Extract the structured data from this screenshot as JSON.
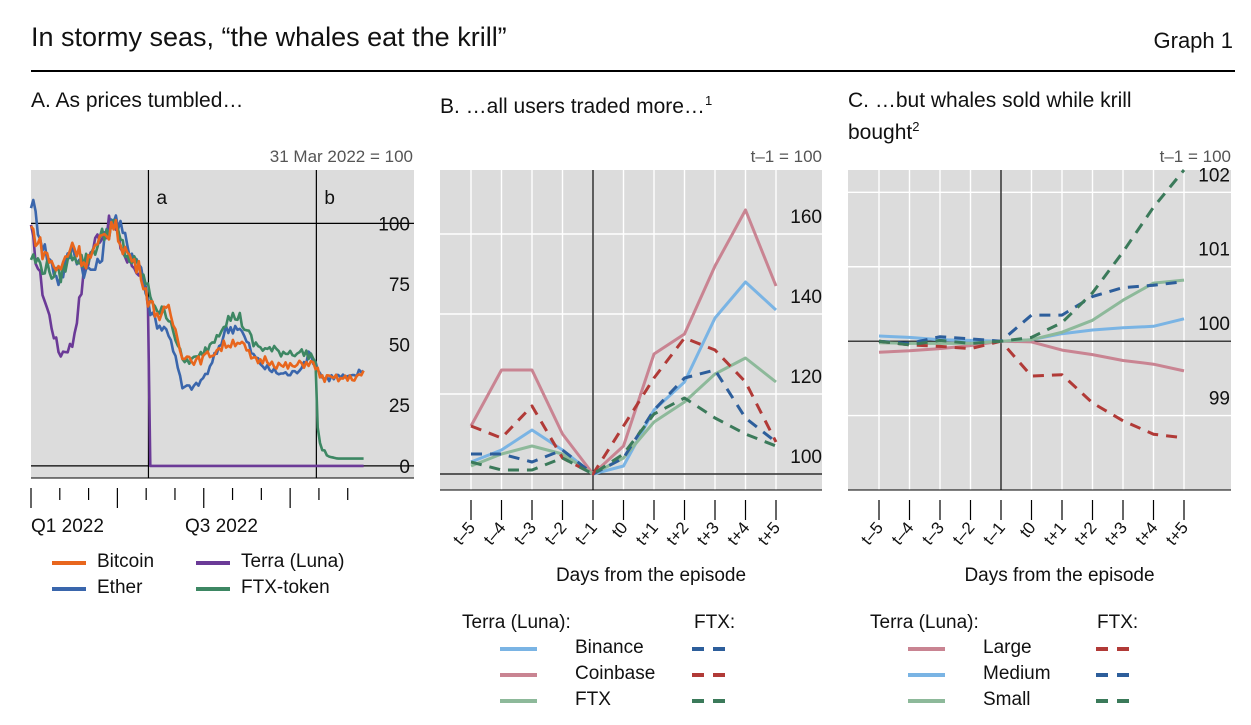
{
  "header": {
    "title": "In stormy seas, “the whales eat the krill”",
    "graph_label": "Graph 1"
  },
  "colors": {
    "bitcoin": "#E8661D",
    "ether": "#3A66AC",
    "terra": "#6B3A97",
    "ftx_token": "#3D8763",
    "binance": "#7AB4E4",
    "coinbase": "#C98492",
    "ftx": "#8DB99A",
    "large": "#C98492",
    "medium": "#7AB4E4",
    "small": "#8DB99A",
    "ftx_red": "#B13A37",
    "ftx_blue": "#2D5E9B",
    "ftx_green": "#3B7A5A",
    "panel_bg": "#DCDCDC"
  },
  "panels": {
    "a": {
      "title": "A. As prices tumbled…",
      "note": "31 Mar 2022 = 100",
      "event_labels": [
        "a",
        "b"
      ],
      "x_tick_labels": [
        "Q1 2022",
        "Q3 2022"
      ],
      "legend": [
        "Bitcoin",
        "Terra (Luna)",
        "Ether",
        "FTX-token"
      ]
    },
    "b": {
      "title": "B. …all users traded more…",
      "title_sup": "1",
      "note": "t–1 = 100",
      "xlabel": "Days from the episode",
      "legend_head_left": "Terra (Luna):",
      "legend_head_right": "FTX:",
      "legend": [
        "Binance",
        "Coinbase",
        "FTX"
      ]
    },
    "c": {
      "title_line1": "C. …but whales sold while krill",
      "title_line2": "bought",
      "title_sup": "2",
      "note": "t–1 = 100",
      "xlabel": "Days from the episode",
      "legend_head_left": "Terra (Luna):",
      "legend_head_right": "FTX:",
      "legend": [
        "Large",
        "Medium",
        "Small"
      ]
    }
  },
  "chart_data": [
    {
      "type": "line",
      "panel": "A",
      "x_range": [
        "2022-01-01",
        "2022-12-31"
      ],
      "x_ticks": [
        "Q1 2022",
        "Q3 2022"
      ],
      "ylim": [
        -5,
        122
      ],
      "y_ticks": [
        0,
        25,
        50,
        75,
        100
      ],
      "events": [
        {
          "label": "a",
          "date": "2022-05-09"
        },
        {
          "label": "b",
          "date": "2022-11-08"
        }
      ],
      "series": [
        {
          "name": "Bitcoin",
          "points": [
            [
              "2022-01-01",
              98
            ],
            [
              "2022-01-15",
              88
            ],
            [
              "2022-02-01",
              80
            ],
            [
              "2022-02-15",
              92
            ],
            [
              "2022-03-01",
              84
            ],
            [
              "2022-03-15",
              90
            ],
            [
              "2022-03-31",
              100
            ],
            [
              "2022-04-15",
              88
            ],
            [
              "2022-05-01",
              80
            ],
            [
              "2022-05-09",
              68
            ],
            [
              "2022-05-20",
              62
            ],
            [
              "2022-06-01",
              64
            ],
            [
              "2022-06-15",
              46
            ],
            [
              "2022-07-01",
              43
            ],
            [
              "2022-07-15",
              46
            ],
            [
              "2022-08-01",
              50
            ],
            [
              "2022-08-15",
              52
            ],
            [
              "2022-09-01",
              43
            ],
            [
              "2022-09-15",
              44
            ],
            [
              "2022-10-01",
              41
            ],
            [
              "2022-10-15",
              41
            ],
            [
              "2022-11-01",
              43
            ],
            [
              "2022-11-08",
              40
            ],
            [
              "2022-11-15",
              36
            ],
            [
              "2022-12-01",
              36
            ],
            [
              "2022-12-15",
              36
            ],
            [
              "2022-12-31",
              38
            ]
          ]
        },
        {
          "name": "Ether",
          "points": [
            [
              "2022-01-01",
              110
            ],
            [
              "2022-01-15",
              90
            ],
            [
              "2022-02-01",
              76
            ],
            [
              "2022-02-15",
              90
            ],
            [
              "2022-03-01",
              80
            ],
            [
              "2022-03-15",
              82
            ],
            [
              "2022-03-31",
              104
            ],
            [
              "2022-04-15",
              92
            ],
            [
              "2022-05-01",
              82
            ],
            [
              "2022-05-09",
              66
            ],
            [
              "2022-05-20",
              58
            ],
            [
              "2022-06-01",
              55
            ],
            [
              "2022-06-15",
              32
            ],
            [
              "2022-07-01",
              33
            ],
            [
              "2022-07-15",
              40
            ],
            [
              "2022-08-01",
              56
            ],
            [
              "2022-08-15",
              58
            ],
            [
              "2022-09-01",
              45
            ],
            [
              "2022-09-15",
              40
            ],
            [
              "2022-10-01",
              38
            ],
            [
              "2022-10-15",
              38
            ],
            [
              "2022-11-01",
              46
            ],
            [
              "2022-11-08",
              42
            ],
            [
              "2022-11-15",
              36
            ],
            [
              "2022-12-01",
              37
            ],
            [
              "2022-12-15",
              36
            ],
            [
              "2022-12-31",
              40
            ]
          ]
        },
        {
          "name": "Terra (Luna)",
          "points": [
            [
              "2022-01-01",
              96
            ],
            [
              "2022-01-15",
              70
            ],
            [
              "2022-02-01",
              46
            ],
            [
              "2022-02-15",
              50
            ],
            [
              "2022-03-01",
              82
            ],
            [
              "2022-03-15",
              95
            ],
            [
              "2022-03-31",
              100
            ],
            [
              "2022-04-15",
              85
            ],
            [
              "2022-05-01",
              80
            ],
            [
              "2022-05-07",
              75
            ],
            [
              "2022-05-09",
              60
            ],
            [
              "2022-05-11",
              0
            ],
            [
              "2022-06-01",
              0
            ],
            [
              "2022-08-01",
              0
            ],
            [
              "2022-10-01",
              0
            ],
            [
              "2022-12-31",
              0
            ]
          ]
        },
        {
          "name": "FTX-token",
          "points": [
            [
              "2022-01-01",
              86
            ],
            [
              "2022-01-15",
              82
            ],
            [
              "2022-02-01",
              78
            ],
            [
              "2022-02-15",
              88
            ],
            [
              "2022-03-01",
              84
            ],
            [
              "2022-03-15",
              92
            ],
            [
              "2022-03-31",
              100
            ],
            [
              "2022-04-15",
              87
            ],
            [
              "2022-05-01",
              80
            ],
            [
              "2022-05-09",
              72
            ],
            [
              "2022-05-20",
              64
            ],
            [
              "2022-06-01",
              62
            ],
            [
              "2022-06-15",
              43
            ],
            [
              "2022-07-01",
              44
            ],
            [
              "2022-07-15",
              50
            ],
            [
              "2022-08-01",
              60
            ],
            [
              "2022-08-15",
              62
            ],
            [
              "2022-09-01",
              50
            ],
            [
              "2022-09-15",
              48
            ],
            [
              "2022-10-01",
              47
            ],
            [
              "2022-10-15",
              47
            ],
            [
              "2022-11-01",
              46
            ],
            [
              "2022-11-06",
              44
            ],
            [
              "2022-11-08",
              38
            ],
            [
              "2022-11-10",
              10
            ],
            [
              "2022-11-20",
              4
            ],
            [
              "2022-12-01",
              3
            ],
            [
              "2022-12-31",
              3
            ]
          ]
        }
      ]
    },
    {
      "type": "line",
      "panel": "B",
      "x": [
        "t–5",
        "t–4",
        "t–3",
        "t–2",
        "t–1",
        "t0",
        "t+1",
        "t+2",
        "t+3",
        "t+4",
        "t+5"
      ],
      "ylim": [
        96,
        176
      ],
      "y_ticks": [
        100,
        120,
        140,
        160
      ],
      "xlabel": "Days from the episode",
      "series": [
        {
          "name": "Binance",
          "group": "Terra (Luna)",
          "dashed": false,
          "values": [
            103,
            106,
            111,
            106,
            100,
            102,
            116,
            123,
            139,
            148,
            141
          ]
        },
        {
          "name": "Coinbase",
          "group": "Terra (Luna)",
          "dashed": false,
          "values": [
            112,
            126,
            126,
            110,
            100,
            107,
            130,
            135,
            152,
            166,
            147
          ]
        },
        {
          "name": "FTX",
          "group": "Terra (Luna)",
          "dashed": false,
          "values": [
            102,
            105,
            107,
            105,
            100,
            104,
            113,
            118,
            125,
            129,
            123
          ]
        },
        {
          "name": "Binance",
          "group": "FTX",
          "dashed": true,
          "values": [
            105,
            105,
            103,
            106,
            100,
            104,
            116,
            124,
            126,
            114,
            108
          ]
        },
        {
          "name": "Coinbase",
          "group": "FTX",
          "dashed": true,
          "values": [
            112,
            109,
            117,
            104,
            100,
            112,
            124,
            134,
            131,
            123,
            108
          ]
        },
        {
          "name": "FTX",
          "group": "FTX",
          "dashed": true,
          "values": [
            103,
            101,
            101,
            104,
            100,
            105,
            115,
            119,
            114,
            110,
            107
          ]
        }
      ]
    },
    {
      "type": "line",
      "panel": "C",
      "x": [
        "t–5",
        "t–4",
        "t–3",
        "t–2",
        "t–1",
        "t0",
        "t+1",
        "t+2",
        "t+3",
        "t+4",
        "t+5"
      ],
      "ylim": [
        98.0,
        102.3
      ],
      "y_ticks": [
        99,
        100,
        101,
        102
      ],
      "xlabel": "Days from the episode",
      "series": [
        {
          "name": "Large",
          "group": "Terra (Luna)",
          "dashed": false,
          "values": [
            99.85,
            99.87,
            99.9,
            99.94,
            100.0,
            99.99,
            99.88,
            99.82,
            99.74,
            99.69,
            99.6
          ]
        },
        {
          "name": "Medium",
          "group": "Terra (Luna)",
          "dashed": false,
          "values": [
            100.07,
            100.05,
            100.02,
            100.01,
            100.0,
            100.02,
            100.1,
            100.15,
            100.18,
            100.2,
            100.3
          ]
        },
        {
          "name": "Small",
          "group": "Terra (Luna)",
          "dashed": false,
          "values": [
            99.98,
            99.97,
            99.97,
            99.97,
            100.0,
            100.02,
            100.12,
            100.28,
            100.55,
            100.78,
            100.82
          ]
        },
        {
          "name": "Large",
          "group": "FTX",
          "dashed": true,
          "values": [
            100.0,
            99.95,
            99.93,
            99.9,
            100.0,
            99.53,
            99.55,
            99.17,
            98.93,
            98.75,
            98.7
          ]
        },
        {
          "name": "Medium",
          "group": "FTX",
          "dashed": true,
          "values": [
            100.0,
            99.97,
            100.06,
            100.03,
            100.0,
            100.35,
            100.35,
            100.6,
            100.72,
            100.75,
            100.8
          ]
        },
        {
          "name": "Small",
          "group": "FTX",
          "dashed": true,
          "values": [
            100.0,
            99.95,
            100.01,
            99.97,
            100.0,
            100.05,
            100.25,
            100.65,
            101.2,
            101.8,
            102.3
          ]
        }
      ]
    }
  ]
}
